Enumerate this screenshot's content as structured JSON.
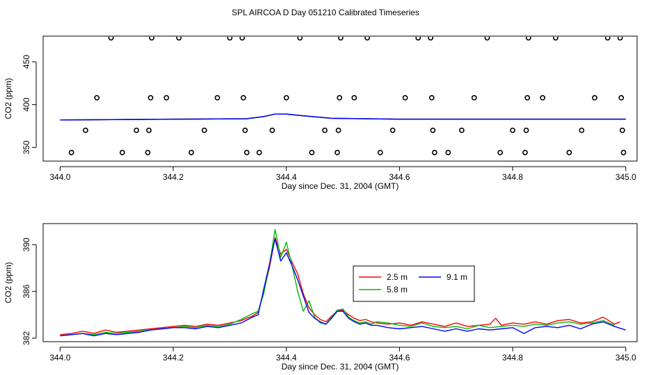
{
  "title": "SPL AIRCOA D  Day 051210  Calibrated Timeseries",
  "chart_data": [
    {
      "type": "scatter",
      "xlabel": "Day since Dec. 31, 2004 (GMT)",
      "ylabel": "CO2 (ppm)",
      "xlim": [
        343.97,
        345.02
      ],
      "ylim": [
        334,
        480
      ],
      "xticks": [
        344.0,
        344.2,
        344.4,
        344.6,
        344.8,
        345.0
      ],
      "xtick_labels": [
        "344.0",
        "344.2",
        "344.4",
        "344.6",
        "344.8",
        "345.0"
      ],
      "yticks": [
        350,
        400,
        450
      ],
      "ytick_labels": [
        "350",
        "400",
        "450"
      ],
      "grid": false,
      "points": [
        [
          344.02,
          344
        ],
        [
          344.045,
          370
        ],
        [
          344.065,
          408
        ],
        [
          344.09,
          478
        ],
        [
          344.11,
          344
        ],
        [
          344.135,
          370
        ],
        [
          344.155,
          344
        ],
        [
          344.157,
          370
        ],
        [
          344.16,
          408
        ],
        [
          344.162,
          478
        ],
        [
          344.188,
          408
        ],
        [
          344.21,
          478
        ],
        [
          344.232,
          344
        ],
        [
          344.255,
          370
        ],
        [
          344.278,
          408
        ],
        [
          344.3,
          478
        ],
        [
          344.322,
          478
        ],
        [
          344.324,
          408
        ],
        [
          344.327,
          370
        ],
        [
          344.33,
          344
        ],
        [
          344.352,
          344
        ],
        [
          344.375,
          370
        ],
        [
          344.4,
          408
        ],
        [
          344.424,
          478
        ],
        [
          344.445,
          344
        ],
        [
          344.468,
          370
        ],
        [
          344.49,
          344
        ],
        [
          344.492,
          370
        ],
        [
          344.494,
          408
        ],
        [
          344.496,
          478
        ],
        [
          344.52,
          408
        ],
        [
          344.543,
          478
        ],
        [
          344.566,
          344
        ],
        [
          344.588,
          370
        ],
        [
          344.61,
          408
        ],
        [
          344.633,
          478
        ],
        [
          344.655,
          478
        ],
        [
          344.657,
          408
        ],
        [
          344.659,
          370
        ],
        [
          344.662,
          344
        ],
        [
          344.686,
          344
        ],
        [
          344.71,
          370
        ],
        [
          344.732,
          408
        ],
        [
          344.755,
          478
        ],
        [
          344.778,
          344
        ],
        [
          344.8,
          370
        ],
        [
          344.822,
          344
        ],
        [
          344.824,
          370
        ],
        [
          344.826,
          408
        ],
        [
          344.828,
          478
        ],
        [
          344.853,
          408
        ],
        [
          344.876,
          478
        ],
        [
          344.9,
          344
        ],
        [
          344.922,
          370
        ],
        [
          344.945,
          408
        ],
        [
          344.968,
          478
        ],
        [
          344.99,
          478
        ],
        [
          344.992,
          408
        ],
        [
          344.994,
          370
        ],
        [
          344.996,
          344
        ]
      ],
      "flat_series": [
        {
          "name": "2.5 m",
          "color": "#ff0000",
          "x": [
            344.0,
            344.2,
            344.33,
            344.36,
            344.38,
            344.4,
            344.43,
            344.48,
            344.6,
            344.8,
            345.0
          ],
          "y": [
            382,
            383,
            383.5,
            386,
            389,
            389,
            387,
            384,
            383,
            383,
            383
          ]
        },
        {
          "name": "5.8 m",
          "color": "#00bb00",
          "x": [
            344.0,
            344.2,
            344.33,
            344.36,
            344.38,
            344.4,
            344.43,
            344.48,
            344.6,
            344.8,
            345.0
          ],
          "y": [
            382,
            383,
            383.5,
            386,
            389,
            389,
            387,
            384,
            383,
            383,
            383
          ]
        },
        {
          "name": "9.1 m",
          "color": "#0000ff",
          "x": [
            344.0,
            344.2,
            344.33,
            344.36,
            344.38,
            344.4,
            344.43,
            344.48,
            344.6,
            344.8,
            345.0
          ],
          "y": [
            382,
            383,
            383.5,
            386,
            389,
            389,
            387,
            384,
            383,
            383,
            383
          ]
        }
      ]
    },
    {
      "type": "line",
      "xlabel": "Day since Dec. 31, 2004 (GMT)",
      "ylabel": "CO2 (ppm)",
      "xlim": [
        343.97,
        345.02
      ],
      "ylim": [
        381.7,
        391.8
      ],
      "xticks": [
        344.0,
        344.2,
        344.4,
        344.6,
        344.8,
        345.0
      ],
      "xtick_labels": [
        "344.0",
        "344.2",
        "344.4",
        "344.6",
        "344.8",
        "345.0"
      ],
      "yticks": [
        382,
        386,
        390
      ],
      "ytick_labels": [
        "382",
        "386",
        "390"
      ],
      "grid": false,
      "legend_position": "center-right",
      "legend": [
        {
          "label": "2.5 m",
          "color": "#ff0000"
        },
        {
          "label": "5.8 m",
          "color": "#00bb00"
        },
        {
          "label": "9.1 m",
          "color": "#0000ff"
        }
      ],
      "series": [
        {
          "name": "2.5 m",
          "color": "#ff0000",
          "x": [
            344.0,
            344.02,
            344.04,
            344.06,
            344.08,
            344.1,
            344.12,
            344.14,
            344.16,
            344.18,
            344.2,
            344.22,
            344.24,
            344.26,
            344.28,
            344.3,
            344.32,
            344.34,
            344.35,
            344.36,
            344.37,
            344.38,
            344.39,
            344.4,
            344.41,
            344.42,
            344.43,
            344.44,
            344.45,
            344.46,
            344.47,
            344.48,
            344.49,
            344.5,
            344.51,
            344.52,
            344.53,
            344.54,
            344.55,
            344.56,
            344.58,
            344.6,
            344.62,
            344.64,
            344.66,
            344.68,
            344.7,
            344.72,
            344.74,
            344.76,
            344.77,
            344.78,
            344.8,
            344.82,
            344.84,
            344.86,
            344.88,
            344.9,
            344.92,
            344.94,
            344.96,
            344.97,
            344.98,
            344.99
          ],
          "y": [
            382.3,
            382.4,
            382.6,
            382.4,
            382.7,
            382.5,
            382.6,
            382.7,
            382.8,
            382.9,
            383.0,
            383.1,
            383.0,
            383.2,
            383.1,
            383.3,
            383.5,
            383.9,
            384.2,
            386.0,
            388.0,
            390.6,
            389.2,
            389.6,
            388.5,
            387.5,
            385.8,
            384.6,
            384.0,
            383.6,
            383.4,
            383.9,
            384.3,
            384.4,
            384.0,
            383.7,
            383.5,
            383.6,
            383.4,
            383.3,
            383.2,
            383.3,
            383.1,
            383.4,
            383.2,
            383.0,
            383.3,
            383.0,
            383.1,
            383.2,
            383.7,
            383.1,
            383.3,
            383.2,
            383.4,
            383.2,
            383.5,
            383.6,
            383.3,
            383.4,
            383.8,
            383.5,
            383.2,
            383.4
          ]
        },
        {
          "name": "5.8 m",
          "color": "#00bb00",
          "x": [
            344.0,
            344.02,
            344.04,
            344.06,
            344.08,
            344.1,
            344.12,
            344.14,
            344.16,
            344.18,
            344.2,
            344.22,
            344.24,
            344.26,
            344.28,
            344.3,
            344.32,
            344.34,
            344.35,
            344.36,
            344.37,
            344.38,
            344.39,
            344.4,
            344.41,
            344.42,
            344.43,
            344.44,
            344.45,
            344.46,
            344.47,
            344.48,
            344.49,
            344.5,
            344.51,
            344.52,
            344.53,
            344.54,
            344.55,
            344.56,
            344.58,
            344.6,
            344.62,
            344.64,
            344.66,
            344.68,
            344.7,
            344.72,
            344.74,
            344.76,
            344.78,
            344.8,
            344.82,
            344.84,
            344.86,
            344.88,
            344.9,
            344.92,
            344.94,
            344.96,
            344.98
          ],
          "y": [
            382.2,
            382.3,
            382.4,
            382.3,
            382.5,
            382.4,
            382.5,
            382.6,
            382.7,
            382.8,
            382.9,
            383.0,
            382.9,
            383.1,
            383.0,
            383.2,
            383.6,
            384.1,
            384.3,
            385.8,
            388.2,
            391.3,
            388.9,
            390.2,
            388.2,
            386.0,
            384.3,
            385.2,
            383.8,
            383.3,
            383.2,
            383.8,
            384.4,
            384.5,
            383.8,
            383.5,
            383.3,
            383.4,
            383.2,
            383.4,
            383.3,
            383.1,
            383.0,
            383.3,
            383.0,
            382.9,
            383.0,
            382.8,
            383.1,
            382.9,
            383.0,
            383.1,
            383.0,
            383.2,
            383.1,
            383.3,
            383.4,
            383.2,
            383.3,
            383.5,
            383.1
          ]
        },
        {
          "name": "9.1 m",
          "color": "#0000ff",
          "x": [
            344.0,
            344.02,
            344.04,
            344.06,
            344.08,
            344.1,
            344.12,
            344.14,
            344.16,
            344.18,
            344.2,
            344.22,
            344.24,
            344.26,
            344.28,
            344.3,
            344.32,
            344.34,
            344.35,
            344.36,
            344.37,
            344.38,
            344.39,
            344.4,
            344.41,
            344.42,
            344.43,
            344.44,
            344.45,
            344.46,
            344.47,
            344.48,
            344.49,
            344.5,
            344.51,
            344.52,
            344.53,
            344.54,
            344.55,
            344.56,
            344.58,
            344.6,
            344.62,
            344.64,
            344.66,
            344.68,
            344.7,
            344.72,
            344.74,
            344.76,
            344.78,
            344.8,
            344.82,
            344.84,
            344.86,
            344.88,
            344.9,
            344.92,
            344.94,
            344.96,
            344.98,
            345.0
          ],
          "y": [
            382.2,
            382.3,
            382.4,
            382.2,
            382.4,
            382.3,
            382.4,
            382.5,
            382.7,
            382.8,
            382.9,
            382.9,
            382.8,
            383.0,
            382.9,
            383.1,
            383.3,
            383.8,
            384.0,
            386.2,
            388.3,
            390.5,
            388.6,
            389.3,
            388.2,
            387.0,
            385.6,
            384.2,
            383.7,
            383.4,
            383.2,
            383.7,
            384.3,
            384.3,
            383.7,
            383.4,
            383.2,
            383.3,
            383.1,
            383.1,
            382.9,
            382.8,
            382.9,
            383.0,
            382.8,
            382.6,
            382.8,
            382.6,
            382.8,
            382.7,
            382.8,
            382.9,
            382.4,
            382.9,
            383.0,
            382.9,
            383.1,
            382.8,
            383.2,
            383.4,
            383.0,
            382.7
          ]
        }
      ]
    }
  ]
}
